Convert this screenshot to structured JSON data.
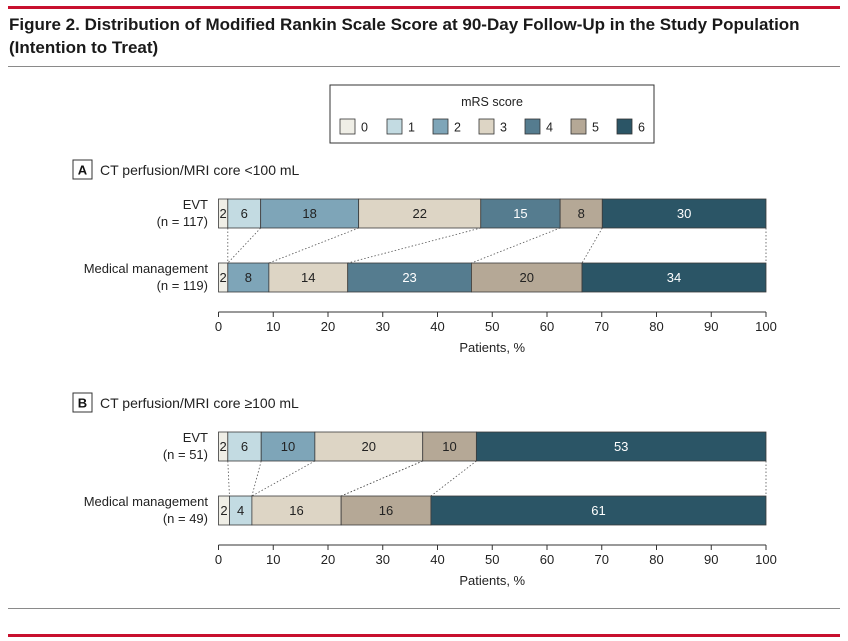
{
  "figure": {
    "title_line1": "Figure 2. Distribution of Modified Rankin Scale Score at 90-Day Follow-Up in the Study Population",
    "title_line2": "(Intention to Treat)"
  },
  "colors": {
    "accent_rule": "#c8102e",
    "categories": [
      "#efeee6",
      "#c3dbe2",
      "#7ea5b8",
      "#ddd5c5",
      "#557c8f",
      "#b5a896",
      "#2b5566"
    ],
    "text_on_dark": "#ffffff",
    "text_on_light": "#222222"
  },
  "chart_data": [
    {
      "type": "bar",
      "orientation": "horizontal-stacked",
      "panel_label": "A",
      "title": "CT perfusion/MRI core <100 mL",
      "legend_title": "mRS score",
      "legend": [
        "0",
        "1",
        "2",
        "3",
        "4",
        "5",
        "6"
      ],
      "legend_position": "top-center",
      "categories": [
        {
          "label": "EVT",
          "n": "(n = 117)"
        },
        {
          "label": "Medical management",
          "n": "(n = 119)"
        }
      ],
      "series": [
        {
          "name": "0",
          "values": [
            2,
            2
          ]
        },
        {
          "name": "1",
          "values": [
            6,
            0
          ]
        },
        {
          "name": "2",
          "values": [
            18,
            8
          ]
        },
        {
          "name": "3",
          "values": [
            22,
            14
          ]
        },
        {
          "name": "4",
          "values": [
            15,
            23
          ]
        },
        {
          "name": "5",
          "values": [
            8,
            20
          ]
        },
        {
          "name": "6",
          "values": [
            30,
            34
          ]
        }
      ],
      "bar_starts": [
        [
          0,
          1.7,
          7.7,
          25.6,
          47.9,
          62.4,
          70.1
        ],
        [
          0,
          1.7,
          1.7,
          9.2,
          23.6,
          46.2,
          66.4
        ]
      ],
      "xlabel": "Patients, %",
      "xlim": [
        0,
        100
      ],
      "xticks": [
        0,
        10,
        20,
        30,
        40,
        50,
        60,
        70,
        80,
        90,
        100
      ],
      "grid": false
    },
    {
      "type": "bar",
      "orientation": "horizontal-stacked",
      "panel_label": "B",
      "title": "CT perfusion/MRI core ≥100 mL",
      "categories": [
        {
          "label": "EVT",
          "n": "(n = 51)"
        },
        {
          "label": "Medical management",
          "n": "(n = 49)"
        }
      ],
      "series": [
        {
          "name": "0",
          "values": [
            2,
            2
          ]
        },
        {
          "name": "1",
          "values": [
            6,
            4
          ]
        },
        {
          "name": "2",
          "values": [
            10,
            0
          ]
        },
        {
          "name": "3",
          "values": [
            20,
            16
          ]
        },
        {
          "name": "4",
          "values": [
            0,
            0
          ]
        },
        {
          "name": "5",
          "values": [
            10,
            16
          ]
        },
        {
          "name": "6",
          "values": [
            53,
            61
          ]
        }
      ],
      "bar_starts": [
        [
          0,
          1.7,
          7.8,
          17.6,
          37.3,
          37.3,
          47.1
        ],
        [
          0,
          2.0,
          6.1,
          6.1,
          22.4,
          22.4,
          38.8
        ]
      ],
      "xlabel": "Patients, %",
      "xlim": [
        0,
        100
      ],
      "xticks": [
        0,
        10,
        20,
        30,
        40,
        50,
        60,
        70,
        80,
        90,
        100
      ],
      "grid": false
    }
  ]
}
